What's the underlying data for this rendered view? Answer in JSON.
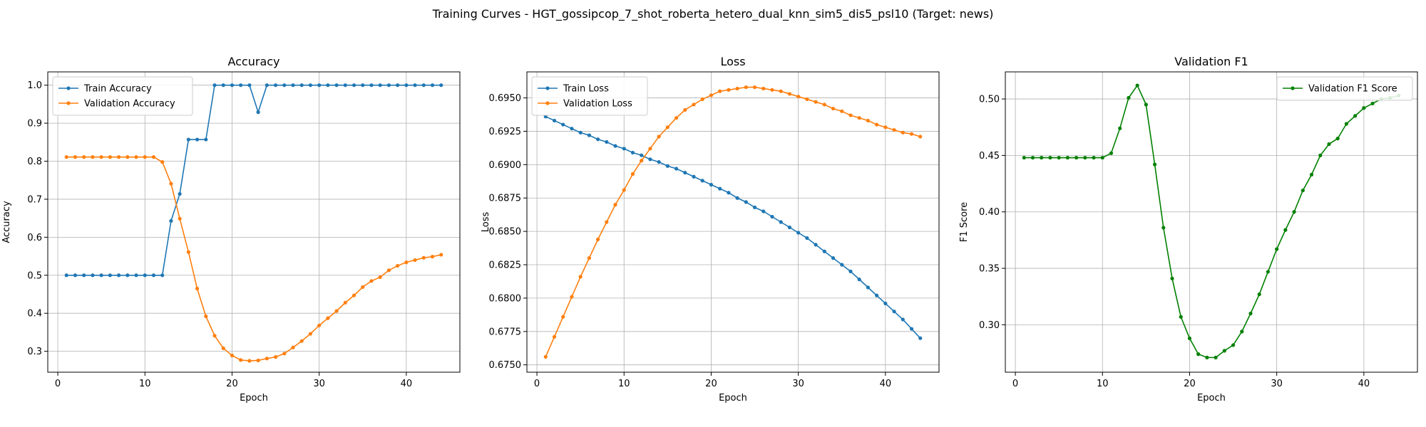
{
  "figure": {
    "suptitle": "Training Curves - HGT_gossipcop_7_shot_roberta_hetero_dual_knn_sim5_dis5_psl10 (Target: news)"
  },
  "colors": {
    "blue": "#1f77b4",
    "orange": "#ff7f0e",
    "green": "#008000",
    "grid": "#b0b0b0"
  },
  "chart_data": [
    {
      "type": "line",
      "title": "Accuracy",
      "xlabel": "Epoch",
      "ylabel": "Accuracy",
      "xlim": [
        -1.15,
        46.15
      ],
      "ylim": [
        0.245,
        1.035
      ],
      "xticks": [
        0,
        10,
        20,
        30,
        40
      ],
      "yticks": [
        0.3,
        0.4,
        0.5,
        0.6,
        0.7,
        0.8,
        0.9,
        1.0
      ],
      "ytick_decimals": 1,
      "grid": true,
      "legend_position": "upper left",
      "x": [
        1,
        2,
        3,
        4,
        5,
        6,
        7,
        8,
        9,
        10,
        11,
        12,
        13,
        14,
        15,
        16,
        17,
        18,
        19,
        20,
        21,
        22,
        23,
        24,
        25,
        26,
        27,
        28,
        29,
        30,
        31,
        32,
        33,
        34,
        35,
        36,
        37,
        38,
        39,
        40,
        41,
        42,
        43,
        44
      ],
      "series": [
        {
          "name": "Train Accuracy",
          "color": "#1f77b4",
          "values": [
            0.5,
            0.5,
            0.5,
            0.5,
            0.5,
            0.5,
            0.5,
            0.5,
            0.5,
            0.5,
            0.5,
            0.5,
            0.643,
            0.714,
            0.857,
            0.857,
            0.857,
            1.0,
            1.0,
            1.0,
            1.0,
            1.0,
            0.929,
            1.0,
            1.0,
            1.0,
            1.0,
            1.0,
            1.0,
            1.0,
            1.0,
            1.0,
            1.0,
            1.0,
            1.0,
            1.0,
            1.0,
            1.0,
            1.0,
            1.0,
            1.0,
            1.0,
            1.0,
            1.0
          ]
        },
        {
          "name": "Validation Accuracy",
          "color": "#ff7f0e",
          "values": [
            0.811,
            0.811,
            0.811,
            0.811,
            0.811,
            0.811,
            0.811,
            0.811,
            0.811,
            0.811,
            0.811,
            0.798,
            0.741,
            0.649,
            0.561,
            0.465,
            0.392,
            0.341,
            0.308,
            0.289,
            0.277,
            0.275,
            0.276,
            0.281,
            0.285,
            0.294,
            0.31,
            0.327,
            0.346,
            0.368,
            0.387,
            0.406,
            0.428,
            0.447,
            0.469,
            0.485,
            0.495,
            0.513,
            0.525,
            0.534,
            0.54,
            0.546,
            0.549,
            0.554
          ]
        }
      ]
    },
    {
      "type": "line",
      "title": "Loss",
      "xlabel": "Epoch",
      "ylabel": "Loss",
      "xlim": [
        -1.15,
        46.15
      ],
      "ylim": [
        0.67445,
        0.69695
      ],
      "xticks": [
        0,
        10,
        20,
        30,
        40
      ],
      "yticks": [
        0.675,
        0.6775,
        0.68,
        0.6825,
        0.685,
        0.6875,
        0.69,
        0.6925,
        0.695
      ],
      "ytick_decimals": 4,
      "grid": true,
      "legend_position": "upper left",
      "x": [
        1,
        2,
        3,
        4,
        5,
        6,
        7,
        8,
        9,
        10,
        11,
        12,
        13,
        14,
        15,
        16,
        17,
        18,
        19,
        20,
        21,
        22,
        23,
        24,
        25,
        26,
        27,
        28,
        29,
        30,
        31,
        32,
        33,
        34,
        35,
        36,
        37,
        38,
        39,
        40,
        41,
        42,
        43,
        44
      ],
      "series": [
        {
          "name": "Train Loss",
          "color": "#1f77b4",
          "values": [
            0.6936,
            0.6933,
            0.693,
            0.6927,
            0.6924,
            0.6922,
            0.6919,
            0.6917,
            0.6914,
            0.6912,
            0.6909,
            0.6907,
            0.6904,
            0.6902,
            0.6899,
            0.6897,
            0.6894,
            0.6891,
            0.6888,
            0.6885,
            0.6882,
            0.6879,
            0.6875,
            0.6872,
            0.6868,
            0.6865,
            0.6861,
            0.6857,
            0.6853,
            0.6849,
            0.6845,
            0.684,
            0.6835,
            0.683,
            0.6825,
            0.682,
            0.6814,
            0.6808,
            0.6802,
            0.6796,
            0.679,
            0.6784,
            0.6777,
            0.677
          ]
        },
        {
          "name": "Validation Loss",
          "color": "#ff7f0e",
          "values": [
            0.6756,
            0.6771,
            0.6786,
            0.6801,
            0.6816,
            0.683,
            0.6844,
            0.6857,
            0.687,
            0.6881,
            0.6893,
            0.6903,
            0.6912,
            0.6921,
            0.6928,
            0.6935,
            0.6941,
            0.6945,
            0.6949,
            0.6952,
            0.6955,
            0.6956,
            0.6957,
            0.6958,
            0.6958,
            0.6957,
            0.6956,
            0.6955,
            0.6953,
            0.6951,
            0.6949,
            0.6947,
            0.6945,
            0.6942,
            0.694,
            0.6937,
            0.6935,
            0.6933,
            0.693,
            0.6928,
            0.6926,
            0.6924,
            0.6923,
            0.6921
          ]
        }
      ]
    },
    {
      "type": "line",
      "title": "Validation F1",
      "xlabel": "Epoch",
      "ylabel": "F1 Score",
      "xlim": [
        -1.15,
        46.15
      ],
      "ylim": [
        0.258,
        0.524
      ],
      "xticks": [
        0,
        10,
        20,
        30,
        40
      ],
      "yticks": [
        0.3,
        0.35,
        0.4,
        0.45,
        0.5
      ],
      "ytick_decimals": 2,
      "grid": true,
      "legend_position": "upper right",
      "x": [
        1,
        2,
        3,
        4,
        5,
        6,
        7,
        8,
        9,
        10,
        11,
        12,
        13,
        14,
        15,
        16,
        17,
        18,
        19,
        20,
        21,
        22,
        23,
        24,
        25,
        26,
        27,
        28,
        29,
        30,
        31,
        32,
        33,
        34,
        35,
        36,
        37,
        38,
        39,
        40,
        41,
        42,
        43,
        44
      ],
      "series": [
        {
          "name": "Validation F1 Score",
          "color": "#008000",
          "values": [
            0.448,
            0.448,
            0.448,
            0.448,
            0.448,
            0.448,
            0.448,
            0.448,
            0.448,
            0.448,
            0.452,
            0.474,
            0.501,
            0.512,
            0.495,
            0.442,
            0.386,
            0.341,
            0.307,
            0.288,
            0.274,
            0.271,
            0.271,
            0.277,
            0.282,
            0.294,
            0.31,
            0.327,
            0.347,
            0.367,
            0.384,
            0.4,
            0.419,
            0.433,
            0.45,
            0.46,
            0.465,
            0.478,
            0.485,
            0.492,
            0.496,
            0.5,
            0.501,
            0.503
          ]
        }
      ]
    }
  ]
}
